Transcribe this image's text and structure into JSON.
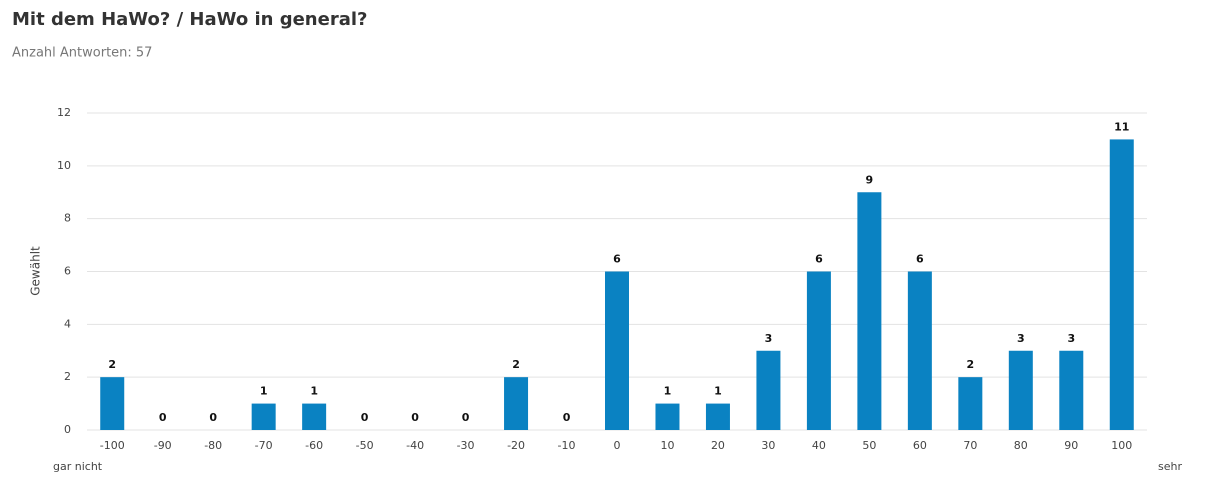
{
  "chart_data": {
    "type": "bar",
    "title": "Mit dem HaWo? / HaWo in general?",
    "subtitle": "Anzahl Antworten: 57",
    "y_label": "Gewählt",
    "x_label_left": "gar nicht",
    "x_label_right": "sehr",
    "categories": [
      "-100",
      "-90",
      "-80",
      "-70",
      "-60",
      "-50",
      "-40",
      "-30",
      "-20",
      "-10",
      "0",
      "10",
      "20",
      "30",
      "40",
      "50",
      "60",
      "70",
      "80",
      "90",
      "100"
    ],
    "values": [
      2,
      0,
      0,
      1,
      1,
      0,
      0,
      0,
      2,
      0,
      6,
      1,
      1,
      3,
      6,
      9,
      6,
      2,
      3,
      3,
      11
    ],
    "color": "#0a82c2",
    "ylim": [
      0,
      12
    ],
    "yticks": [
      0,
      2,
      4,
      6,
      8,
      10,
      12
    ],
    "grid": true
  }
}
